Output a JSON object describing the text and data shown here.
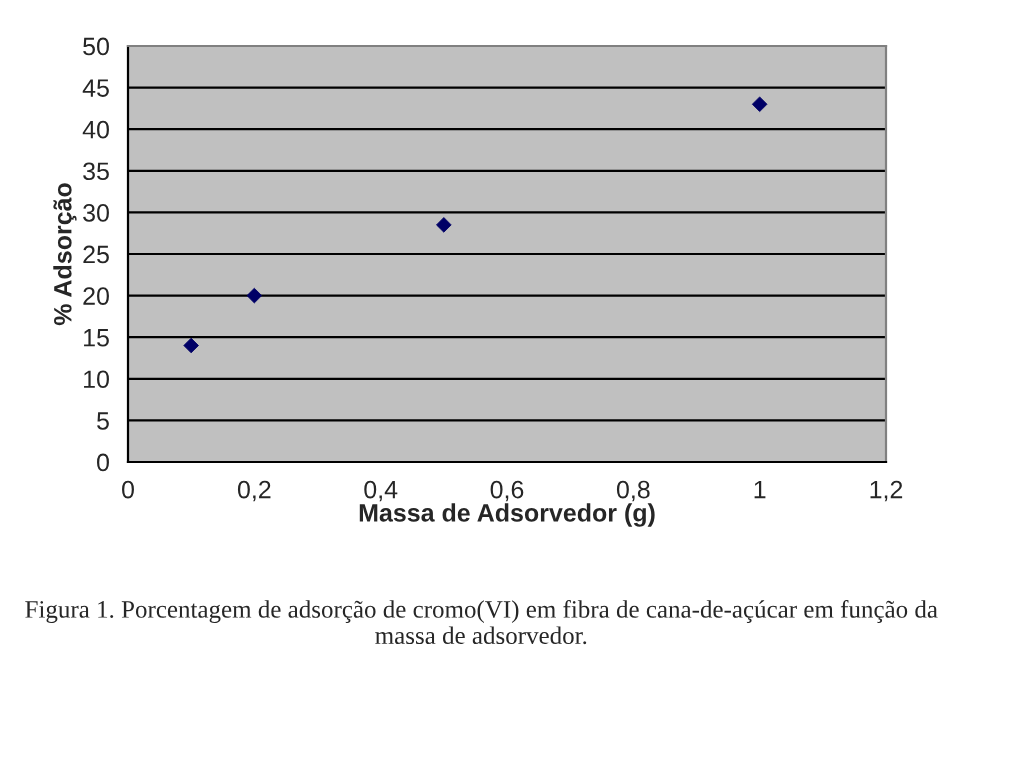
{
  "chart_data": {
    "type": "scatter",
    "xlabel": "Massa de Adsorvedor (g)",
    "ylabel": "% Adsorção",
    "x": [
      0.1,
      0.2,
      0.5,
      1.0
    ],
    "series": [
      {
        "color": "#000066",
        "values": [
          14,
          20,
          28.5,
          43
        ]
      }
    ],
    "xlim": [
      0,
      1.2
    ],
    "xticks": [
      0,
      {
        "value": 0.2,
        "label": "0,2"
      },
      {
        "value": 0.4,
        "label": "0,4"
      },
      {
        "value": 0.6,
        "label": "0,6"
      },
      {
        "value": 0.8,
        "label": "0,8"
      },
      1,
      {
        "value": 1.2,
        "label": "1,2"
      }
    ],
    "ylim": [
      0,
      50
    ],
    "yticks": [
      0,
      5,
      10,
      15,
      20,
      25,
      30,
      35,
      40,
      45,
      50
    ],
    "grid": "y",
    "marker": "diamond",
    "legend": false,
    "annotations": [
      "Figura 1. Porcentagem de adsorção de cromo(VI) em fibra de cana-de-açúcar em função da massa de adsorvedor."
    ]
  }
}
